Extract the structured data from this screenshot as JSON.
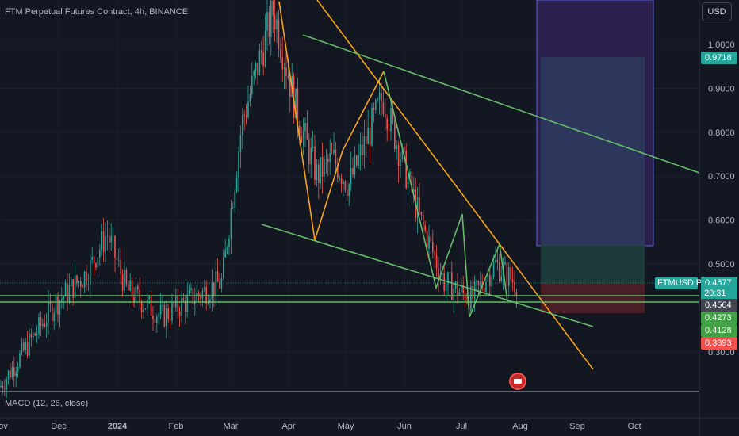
{
  "header": {
    "title": "FTM Perpetual Futures Contract, 4h, BINANCE",
    "currency_button": "USD"
  },
  "indicator": {
    "label": "MACD (12, 26, close)"
  },
  "price_axis": {
    "ticks": [
      "1.0000",
      "0.9000",
      "0.8000",
      "0.7000",
      "0.6000",
      "0.5000",
      "0.3000"
    ]
  },
  "time_axis": {
    "ticks": [
      "Nov",
      "Dec",
      "2024",
      "Feb",
      "Mar",
      "Apr",
      "May",
      "Jun",
      "Jul",
      "Aug",
      "Sep",
      "Oct"
    ]
  },
  "price_labels": {
    "target": "0.9718",
    "last": "0.4577",
    "countdown": "20:31",
    "level_a": "0.4564",
    "level_b": "0.4273",
    "level_c": "0.4128",
    "stop": "0.3893"
  },
  "symbol_label": "FTMUSD.P",
  "colors": {
    "background": "#131722",
    "up": "#26a69a",
    "down": "#ef5350",
    "orange_line": "#f7a21b",
    "green_line": "#66bb6a",
    "target_zone": "#2a2e5a",
    "stop_zone": "#4a1e24",
    "last_price": "#26a69a"
  },
  "chart_data": {
    "type": "candlestick",
    "title": "FTM Perpetual Futures Contract, 4h, BINANCE",
    "y_unit": "USD",
    "ylim": [
      0.28,
      1.1
    ],
    "x_labels": [
      "Nov",
      "Dec",
      "2024",
      "Feb",
      "Mar",
      "Apr",
      "May",
      "Jun",
      "Jul",
      "Aug",
      "Sep",
      "Oct"
    ],
    "price_path": [
      [
        "Nov",
        0.22
      ],
      [
        "Dec",
        0.41
      ],
      [
        "Dec",
        0.48
      ],
      [
        "2024",
        0.57
      ],
      [
        "2024",
        0.44
      ],
      [
        "Feb",
        0.38
      ],
      [
        "Feb",
        0.42
      ],
      [
        "Mar",
        0.46
      ],
      [
        "Mar",
        0.82
      ],
      [
        "Mar",
        1.08
      ],
      [
        "Apr",
        0.84
      ],
      [
        "Apr",
        0.7
      ],
      [
        "May",
        0.74
      ],
      [
        "May",
        0.68
      ],
      [
        "Jun",
        0.88
      ],
      [
        "Jun",
        0.78
      ],
      [
        "Jun",
        0.6
      ],
      [
        "Jul",
        0.46
      ],
      [
        "Jul",
        0.42
      ],
      [
        "Jul",
        0.5
      ],
      [
        "Aug",
        0.4577
      ]
    ],
    "last_price": 0.4577,
    "horizontal_levels": [
      0.4564,
      0.4273,
      0.4128
    ],
    "position": {
      "entry": 0.4577,
      "target": 0.9718,
      "stop": 0.3893
    },
    "indicator": "MACD (12, 26, close)"
  }
}
